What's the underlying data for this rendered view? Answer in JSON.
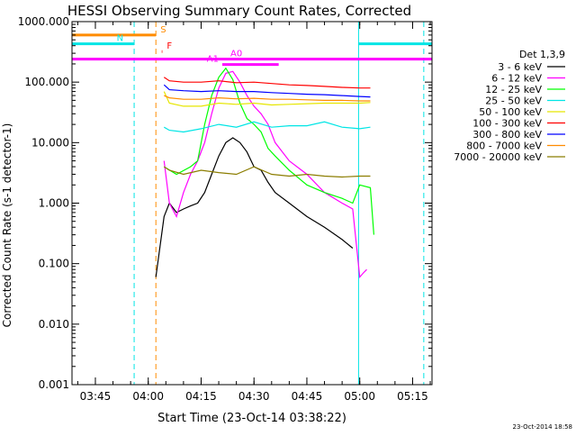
{
  "chart_data": {
    "type": "line",
    "title": "HESSI Observing Summary Count Rates, Corrected",
    "xlabel": "Start Time (23-Oct-14 03:38:22)",
    "ylabel": "Corrected Count Rate (s-1 detector-1)",
    "yscale": "log",
    "ylim": [
      0.001,
      1000
    ],
    "xlim": [
      "03:38:22",
      "05:20:30"
    ],
    "xticks": [
      "03:45",
      "04:00",
      "04:15",
      "04:30",
      "04:45",
      "05:00",
      "05:15"
    ],
    "yticks": [
      "0.001",
      "0.010",
      "0.100",
      "1.000",
      "10.000",
      "100.000",
      "1000.000"
    ],
    "grid": false,
    "legend_title": "Det 1,3,9",
    "legend_position": "right",
    "series": [
      {
        "name": "3 - 6 keV",
        "color": "#000000",
        "x": [
          "04:02:10",
          "04:04:30",
          "04:06",
          "04:08",
          "04:10",
          "04:12",
          "04:14",
          "04:16",
          "04:18",
          "04:20",
          "04:22",
          "04:24",
          "04:26",
          "04:28",
          "04:30",
          "04:32",
          "04:34",
          "04:36",
          "04:40",
          "04:45",
          "04:50",
          "04:55",
          "04:58"
        ],
        "y": [
          0.06,
          0.6,
          1.0,
          0.7,
          0.8,
          0.9,
          1.0,
          1.5,
          3.0,
          6.0,
          10.0,
          12.0,
          10.0,
          7.0,
          4.0,
          3.5,
          2.2,
          1.5,
          1.0,
          0.6,
          0.4,
          0.25,
          0.18
        ]
      },
      {
        "name": "6 - 12 keV",
        "color": "#ff00ff",
        "x": [
          "04:04:30",
          "04:06",
          "04:08",
          "04:10",
          "04:12",
          "04:14",
          "04:16",
          "04:18",
          "04:20",
          "04:22",
          "04:24",
          "04:26",
          "04:28",
          "04:30",
          "04:32",
          "04:34",
          "04:36",
          "04:40",
          "04:45",
          "04:50",
          "04:55",
          "04:58",
          "05:00",
          "05:01",
          "05:02"
        ],
        "y": [
          5.0,
          1.0,
          0.6,
          1.5,
          3.0,
          5.0,
          10.0,
          30.0,
          80.0,
          140.0,
          150.0,
          100.0,
          60.0,
          40.0,
          30.0,
          20.0,
          10.0,
          5.0,
          3.0,
          1.5,
          1.0,
          0.8,
          0.06,
          0.07,
          0.08
        ]
      },
      {
        "name": "12 - 25 keV",
        "color": "#00ff00",
        "x": [
          "04:04:30",
          "04:08",
          "04:12",
          "04:14",
          "04:16",
          "04:18",
          "04:20",
          "04:22",
          "04:24",
          "04:26",
          "04:28",
          "04:30",
          "04:32",
          "04:34",
          "04:36",
          "04:40",
          "04:45",
          "04:50",
          "04:55",
          "04:58",
          "05:00",
          "05:03",
          "05:04"
        ],
        "y": [
          4.0,
          3.0,
          4.0,
          5.0,
          20.0,
          60.0,
          120.0,
          170.0,
          110.0,
          45.0,
          25.0,
          20.0,
          15.0,
          8.0,
          6.0,
          3.5,
          2.0,
          1.5,
          1.2,
          1.0,
          2.0,
          1.8,
          0.3
        ]
      },
      {
        "name": "25 - 50 keV",
        "color": "#00e5e5",
        "x": [
          "04:04:30",
          "04:06",
          "04:10",
          "04:15",
          "04:20",
          "04:25",
          "04:30",
          "04:35",
          "04:40",
          "04:45",
          "04:50",
          "04:55",
          "05:00",
          "05:03"
        ],
        "y": [
          18.0,
          16.0,
          15.0,
          17.0,
          20.0,
          18.0,
          22.0,
          18.0,
          19.0,
          19.0,
          22.0,
          18.0,
          17.0,
          18.0
        ]
      },
      {
        "name": "50 - 100 keV",
        "color": "#e6e600",
        "x": [
          "04:04:30",
          "04:06",
          "04:10",
          "04:15",
          "04:20",
          "04:25",
          "04:30",
          "04:35",
          "04:40",
          "04:45",
          "04:50",
          "04:55",
          "05:00",
          "05:03"
        ],
        "y": [
          70.0,
          45.0,
          40.0,
          40.0,
          45.0,
          43.0,
          45.0,
          42.0,
          43.0,
          44.0,
          45.0,
          45.0,
          45.0,
          46.0
        ]
      },
      {
        "name": "100 - 300 keV",
        "color": "#ff0000",
        "x": [
          "04:04:30",
          "04:06",
          "04:10",
          "04:15",
          "04:20",
          "04:25",
          "04:30",
          "04:35",
          "04:40",
          "04:45",
          "04:50",
          "04:55",
          "05:00",
          "05:03"
        ],
        "y": [
          120.0,
          105.0,
          100.0,
          100.0,
          105.0,
          98.0,
          100.0,
          95.0,
          90.0,
          88.0,
          85.0,
          82.0,
          80.0,
          80.0
        ]
      },
      {
        "name": "300 - 800 keV",
        "color": "#0000ff",
        "x": [
          "04:04:30",
          "04:06",
          "04:10",
          "04:15",
          "04:20",
          "04:25",
          "04:30",
          "04:35",
          "04:40",
          "04:45",
          "04:50",
          "04:55",
          "05:00",
          "05:03"
        ],
        "y": [
          90.0,
          75.0,
          72.0,
          70.0,
          72.0,
          70.0,
          70.0,
          67.0,
          65.0,
          63.0,
          62.0,
          60.0,
          58.0,
          57.0
        ]
      },
      {
        "name": "800 - 7000 keV",
        "color": "#ff8c00",
        "x": [
          "04:04:30",
          "04:06",
          "04:10",
          "04:15",
          "04:20",
          "04:25",
          "04:30",
          "04:35",
          "04:40",
          "04:45",
          "04:50",
          "04:55",
          "05:00",
          "05:03"
        ],
        "y": [
          60.0,
          55.0,
          52.0,
          52.0,
          55.0,
          53.0,
          54.0,
          52.0,
          52.0,
          51.0,
          50.0,
          50.0,
          49.0,
          49.0
        ]
      },
      {
        "name": "7000 - 20000 keV",
        "color": "#8b7d00",
        "x": [
          "04:04:30",
          "04:06",
          "04:10",
          "04:15",
          "04:20",
          "04:25",
          "04:30",
          "04:35",
          "04:40",
          "04:45",
          "04:50",
          "04:55",
          "05:00",
          "05:03"
        ],
        "y": [
          4.0,
          3.5,
          3.0,
          3.5,
          3.2,
          3.0,
          4.0,
          3.0,
          2.8,
          3.0,
          2.8,
          2.7,
          2.8,
          2.8
        ]
      }
    ],
    "vertical_lines": [
      {
        "color": "#00e5e5",
        "style": "dashed",
        "x": "03:56:00"
      },
      {
        "color": "#ff8c00",
        "style": "dashed",
        "x": "04:02:10"
      },
      {
        "color": "#00e5e5",
        "style": "solid",
        "x": "04:59:40"
      },
      {
        "color": "#00e5e5",
        "style": "dashed",
        "x": "05:18:10"
      }
    ],
    "flag_bars": [
      {
        "label": "S",
        "color": "#ff8c00",
        "y": 600,
        "segments": [
          [
            "03:38:22",
            "04:02:10"
          ]
        ]
      },
      {
        "label": "N",
        "color": "#00e5e5",
        "y": 430,
        "segments": [
          [
            "03:38:22",
            "03:56:00"
          ],
          [
            "04:59:40",
            "05:20:30"
          ]
        ]
      },
      {
        "label": "F",
        "color": "#ff0000",
        "y": 320,
        "segments": [
          [
            "04:03:50",
            "04:04:00"
          ]
        ]
      },
      {
        "label": "A0",
        "color": "#ff00ff",
        "y": 240,
        "segments": [
          [
            "03:38:22",
            "05:20:30"
          ]
        ]
      },
      {
        "label": "A1",
        "color": "#ff00ff",
        "y": 195,
        "segments": [
          [
            "04:21:00",
            "04:37:00"
          ]
        ]
      }
    ]
  },
  "footer": {
    "date_stamp": "23-Oct-2014 18:58"
  }
}
